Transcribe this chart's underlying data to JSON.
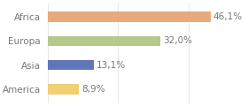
{
  "categories": [
    "Africa",
    "Europa",
    "Asia",
    "America"
  ],
  "values": [
    46.1,
    32.0,
    13.1,
    8.9
  ],
  "labels": [
    "46,1%",
    "32,0%",
    "13,1%",
    "8,9%"
  ],
  "bar_colors": [
    "#e8a97d",
    "#b5c98a",
    "#6076b8",
    "#f0d070"
  ],
  "background_color": "#ffffff",
  "xlim": [
    0,
    56
  ],
  "bar_height": 0.42,
  "label_fontsize": 7.5,
  "tick_fontsize": 7.5,
  "grid_color": "#dddddd",
  "label_color": "#777777",
  "tick_color": "#777777"
}
